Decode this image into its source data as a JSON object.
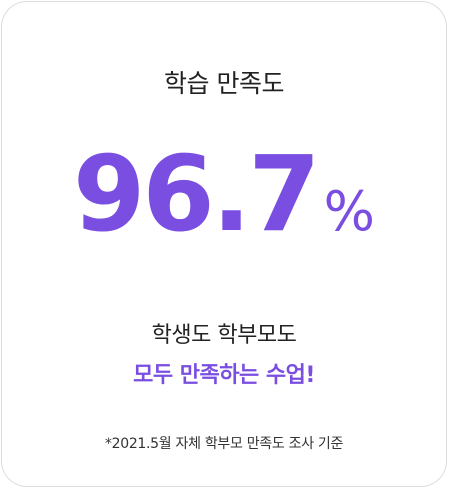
{
  "card": {
    "title": "학습 만족도",
    "stat_value": "96.7",
    "stat_unit": "%",
    "subtitle": "학생도 학부모도",
    "highlight": "모두 만족하는 수업!",
    "footnote": "*2021.5월 자체 학부모 만족도 조사 기준"
  },
  "colors": {
    "accent": "#7a4ee0",
    "text": "#222222",
    "border": "#dcdcdc"
  }
}
